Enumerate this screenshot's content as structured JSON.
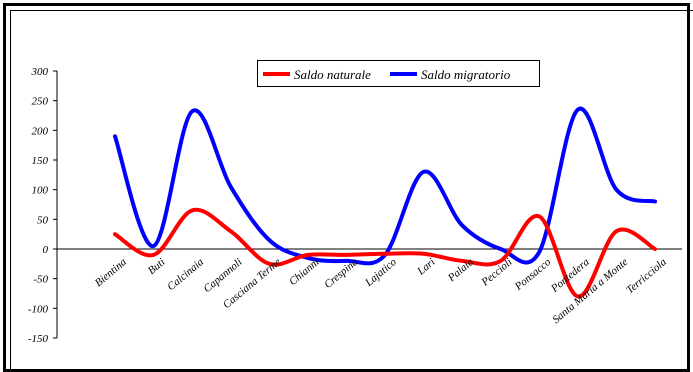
{
  "chart_data": {
    "type": "line",
    "title": "",
    "xlabel": "",
    "ylabel": "",
    "categories": [
      "Bientina",
      "Buti",
      "Calcinaia",
      "Capannoli",
      "Casciana Terme",
      "Chianni",
      "Crespina",
      "Lajatico",
      "Lari",
      "Palaia",
      "Peccioli",
      "Ponsacco",
      "Pontedera",
      "Santa Maria a Monte",
      "Terricciola"
    ],
    "ylim": [
      -150,
      300
    ],
    "yticks": [
      -150,
      -100,
      -50,
      0,
      50,
      100,
      150,
      200,
      250,
      300
    ],
    "legend_position": "top-center",
    "series": [
      {
        "name": "Saldo naturale",
        "color": "#ff0000",
        "values": [
          25,
          -10,
          65,
          30,
          -25,
          -10,
          -10,
          -8,
          -8,
          -20,
          -20,
          55,
          -80,
          30,
          0
        ]
      },
      {
        "name": "Saldo migratorio",
        "color": "#0000ff",
        "values": [
          190,
          5,
          232,
          105,
          15,
          -15,
          -20,
          -10,
          130,
          40,
          0,
          -5,
          235,
          100,
          80
        ]
      }
    ]
  }
}
